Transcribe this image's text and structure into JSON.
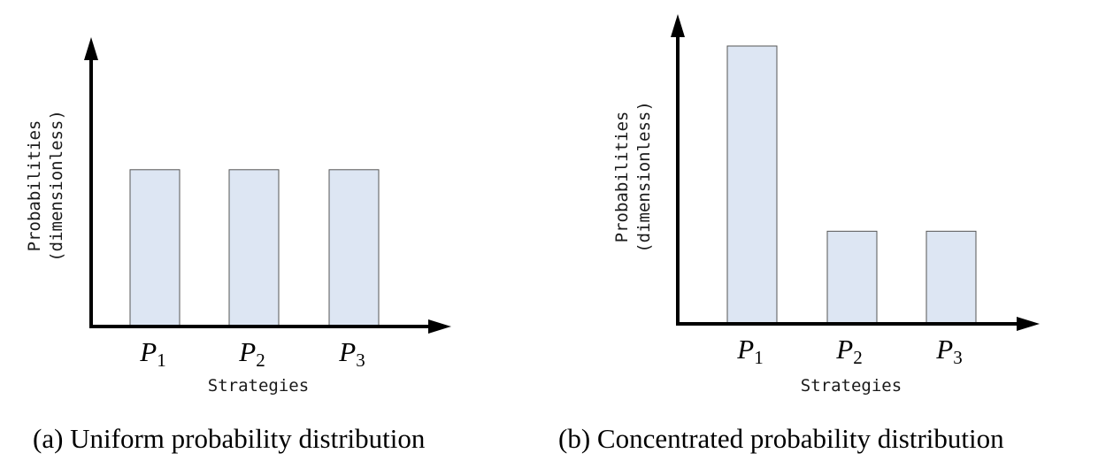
{
  "chart_data": [
    {
      "type": "bar",
      "categories": [
        "P1",
        "P2",
        "P3"
      ],
      "values": [
        0.3333,
        0.3333,
        0.3333
      ],
      "ylim": [
        0,
        0.6
      ],
      "xlabel": "Strategies",
      "ylabel_lines": [
        "Probabilities",
        "(dimensionless)"
      ],
      "title": "(a) Uniform probability distribution",
      "grid": false,
      "colors": {
        "bar_fill": "#dde6f3",
        "bar_stroke": "#555555",
        "axis": "#000000"
      }
    },
    {
      "type": "bar",
      "categories": [
        "P1",
        "P2",
        "P3"
      ],
      "values": [
        0.6,
        0.2,
        0.2
      ],
      "ylim": [
        0,
        0.6
      ],
      "xlabel": "Strategies",
      "ylabel_lines": [
        "Probabilities",
        "(dimensionless)"
      ],
      "title": "(b) Concentrated probability distribution",
      "grid": false,
      "colors": {
        "bar_fill": "#dde6f3",
        "bar_stroke": "#555555",
        "axis": "#000000"
      }
    }
  ]
}
